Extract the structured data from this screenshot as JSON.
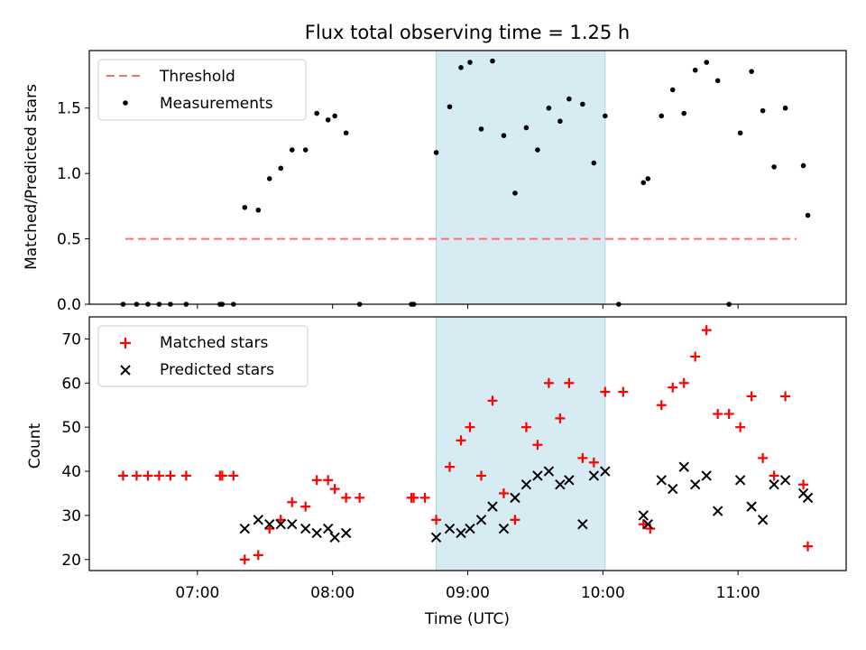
{
  "title": "Flux total observing time = 1.25 h",
  "colors": {
    "threshold": "#ff6f6f",
    "measurements": "#000000",
    "matched": "#ff0000",
    "predicted": "#000000",
    "span": "#add8e6"
  },
  "chart_data": [
    {
      "type": "scatter",
      "panel": "top",
      "xlabel": "",
      "ylabel": "Matched/Predicted stars",
      "xlim": [
        "06:12",
        "11:48"
      ],
      "ylim": [
        0,
        1.94
      ],
      "yticks": [
        0.0,
        0.5,
        1.0,
        1.5
      ],
      "ytick_labels": [
        "0.0",
        "0.5",
        "1.0",
        "1.5"
      ],
      "highlight_span": [
        "08:46",
        "10:01"
      ],
      "legend_position": "top-left",
      "threshold": {
        "name": "Threshold",
        "style": "dashed",
        "x": [
          "06:28",
          "11:26"
        ],
        "y": 0.5
      },
      "series": [
        {
          "name": "Measurements",
          "marker": "dot",
          "points": [
            [
              "06:27",
              0
            ],
            [
              "06:33",
              0
            ],
            [
              "06:38",
              0
            ],
            [
              "06:43",
              0
            ],
            [
              "06:48",
              0
            ],
            [
              "06:55",
              0
            ],
            [
              "07:10",
              0
            ],
            [
              "07:11",
              0
            ],
            [
              "07:16",
              0
            ],
            [
              "07:21",
              0.74
            ],
            [
              "07:27",
              0.72
            ],
            [
              "07:32",
              0.96
            ],
            [
              "07:37",
              1.04
            ],
            [
              "07:42",
              1.18
            ],
            [
              "07:48",
              1.18
            ],
            [
              "07:53",
              1.46
            ],
            [
              "07:58",
              1.41
            ],
            [
              "08:01",
              1.44
            ],
            [
              "08:06",
              1.31
            ],
            [
              "08:12",
              0
            ],
            [
              "08:35",
              0
            ],
            [
              "08:36",
              0
            ],
            [
              "08:46",
              1.16
            ],
            [
              "08:52",
              1.51
            ],
            [
              "08:57",
              1.81
            ],
            [
              "09:01",
              1.85
            ],
            [
              "09:06",
              1.34
            ],
            [
              "09:11",
              1.86
            ],
            [
              "09:16",
              1.29
            ],
            [
              "09:21",
              0.85
            ],
            [
              "09:26",
              1.35
            ],
            [
              "09:31",
              1.18
            ],
            [
              "09:36",
              1.5
            ],
            [
              "09:41",
              1.4
            ],
            [
              "09:45",
              1.57
            ],
            [
              "09:51",
              1.53
            ],
            [
              "09:56",
              1.08
            ],
            [
              "10:01",
              1.44
            ],
            [
              "10:07",
              0
            ],
            [
              "10:18",
              0.93
            ],
            [
              "10:20",
              0.96
            ],
            [
              "10:26",
              1.44
            ],
            [
              "10:31",
              1.64
            ],
            [
              "10:36",
              1.46
            ],
            [
              "10:41",
              1.79
            ],
            [
              "10:46",
              1.85
            ],
            [
              "10:51",
              1.71
            ],
            [
              "10:56",
              0
            ],
            [
              "11:01",
              1.31
            ],
            [
              "11:06",
              1.78
            ],
            [
              "11:11",
              1.48
            ],
            [
              "11:16",
              1.05
            ],
            [
              "11:21",
              1.5
            ],
            [
              "11:29",
              1.06
            ],
            [
              "11:31",
              0.68
            ]
          ]
        }
      ]
    },
    {
      "type": "scatter",
      "panel": "bottom",
      "xlabel": "Time (UTC)",
      "ylabel": "Count",
      "xlim": [
        "06:12",
        "11:48"
      ],
      "ylim": [
        17.5,
        75
      ],
      "yticks": [
        20,
        30,
        40,
        50,
        60,
        70
      ],
      "ytick_labels": [
        "20",
        "30",
        "40",
        "50",
        "60",
        "70"
      ],
      "xticks": [
        "07:00",
        "08:00",
        "09:00",
        "10:00",
        "11:00"
      ],
      "xtick_labels": [
        "07:00",
        "08:00",
        "09:00",
        "10:00",
        "11:00"
      ],
      "highlight_span": [
        "08:46",
        "10:01"
      ],
      "legend_position": "top-left",
      "series": [
        {
          "name": "Matched stars",
          "marker": "plus",
          "points": [
            [
              "06:27",
              39
            ],
            [
              "06:33",
              39
            ],
            [
              "06:38",
              39
            ],
            [
              "06:43",
              39
            ],
            [
              "06:48",
              39
            ],
            [
              "06:55",
              39
            ],
            [
              "07:10",
              39
            ],
            [
              "07:11",
              39
            ],
            [
              "07:16",
              39
            ],
            [
              "07:21",
              20
            ],
            [
              "07:27",
              21
            ],
            [
              "07:32",
              27
            ],
            [
              "07:37",
              29
            ],
            [
              "07:42",
              33
            ],
            [
              "07:48",
              32
            ],
            [
              "07:53",
              38
            ],
            [
              "07:58",
              38
            ],
            [
              "08:01",
              36
            ],
            [
              "08:06",
              34
            ],
            [
              "08:12",
              34
            ],
            [
              "08:35",
              34
            ],
            [
              "08:36",
              34
            ],
            [
              "08:41",
              34
            ],
            [
              "08:46",
              29
            ],
            [
              "08:52",
              41
            ],
            [
              "08:57",
              47
            ],
            [
              "09:01",
              50
            ],
            [
              "09:06",
              39
            ],
            [
              "09:11",
              56
            ],
            [
              "09:16",
              35
            ],
            [
              "09:21",
              29
            ],
            [
              "09:26",
              50
            ],
            [
              "09:31",
              46
            ],
            [
              "09:36",
              60
            ],
            [
              "09:41",
              52
            ],
            [
              "09:45",
              60
            ],
            [
              "09:51",
              43
            ],
            [
              "09:56",
              42
            ],
            [
              "10:01",
              58
            ],
            [
              "10:09",
              58
            ],
            [
              "10:18",
              28
            ],
            [
              "10:21",
              27
            ],
            [
              "10:26",
              55
            ],
            [
              "10:31",
              59
            ],
            [
              "10:36",
              60
            ],
            [
              "10:41",
              66
            ],
            [
              "10:46",
              72
            ],
            [
              "10:51",
              53
            ],
            [
              "10:56",
              53
            ],
            [
              "11:01",
              50
            ],
            [
              "11:06",
              57
            ],
            [
              "11:11",
              43
            ],
            [
              "11:16",
              39
            ],
            [
              "11:21",
              57
            ],
            [
              "11:29",
              37
            ],
            [
              "11:31",
              23
            ]
          ]
        },
        {
          "name": "Predicted stars",
          "marker": "x",
          "points": [
            [
              "07:21",
              27
            ],
            [
              "07:27",
              29
            ],
            [
              "07:32",
              28
            ],
            [
              "07:37",
              28
            ],
            [
              "07:42",
              28
            ],
            [
              "07:48",
              27
            ],
            [
              "07:53",
              26
            ],
            [
              "07:58",
              27
            ],
            [
              "08:01",
              25
            ],
            [
              "08:06",
              26
            ],
            [
              "08:46",
              25
            ],
            [
              "08:52",
              27
            ],
            [
              "08:57",
              26
            ],
            [
              "09:01",
              27
            ],
            [
              "09:06",
              29
            ],
            [
              "09:11",
              32
            ],
            [
              "09:16",
              27
            ],
            [
              "09:21",
              34
            ],
            [
              "09:26",
              37
            ],
            [
              "09:31",
              39
            ],
            [
              "09:36",
              40
            ],
            [
              "09:41",
              37
            ],
            [
              "09:45",
              38
            ],
            [
              "09:51",
              28
            ],
            [
              "09:56",
              39
            ],
            [
              "10:01",
              40
            ],
            [
              "10:18",
              30
            ],
            [
              "10:20",
              28
            ],
            [
              "10:26",
              38
            ],
            [
              "10:31",
              36
            ],
            [
              "10:36",
              41
            ],
            [
              "10:41",
              37
            ],
            [
              "10:46",
              39
            ],
            [
              "10:51",
              31
            ],
            [
              "11:01",
              38
            ],
            [
              "11:06",
              32
            ],
            [
              "11:11",
              29
            ],
            [
              "11:16",
              37
            ],
            [
              "11:21",
              38
            ],
            [
              "11:29",
              35
            ],
            [
              "11:31",
              34
            ]
          ]
        }
      ]
    }
  ]
}
